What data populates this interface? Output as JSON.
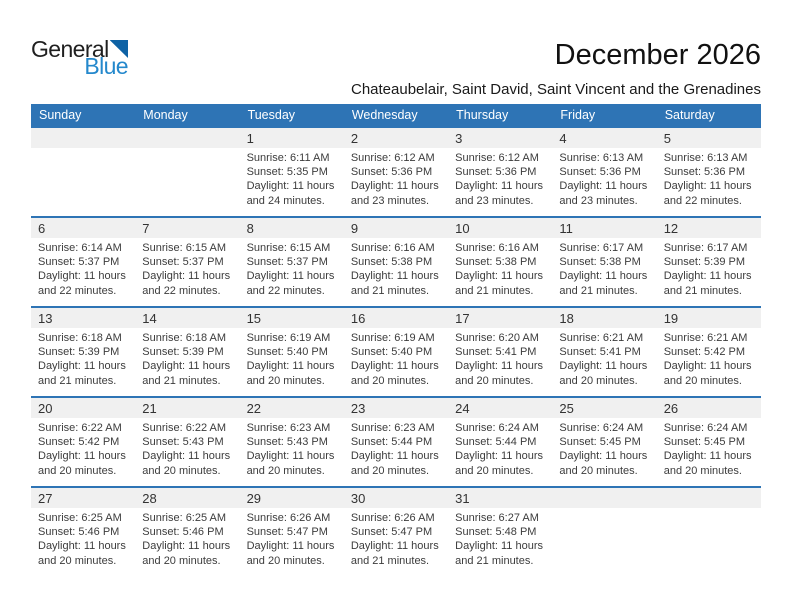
{
  "logo": {
    "word1": "General",
    "word2": "Blue"
  },
  "header": {
    "title": "December 2026",
    "subtitle": "Chateaubelair, Saint David, Saint Vincent and the Grenadines"
  },
  "colors": {
    "accent_blue": "#2e74b5",
    "band_gray": "#f0f0f0",
    "logo_blue": "#2488cc",
    "logo_triangle_blue": "#0e62a5"
  },
  "calendar": {
    "day_headers": [
      "Sunday",
      "Monday",
      "Tuesday",
      "Wednesday",
      "Thursday",
      "Friday",
      "Saturday"
    ],
    "weeks": [
      {
        "days": [
          null,
          null,
          {
            "date": "1",
            "sunrise": "Sunrise: 6:11 AM",
            "sunset": "Sunset: 5:35 PM",
            "daylight": "Daylight: 11 hours and 24 minutes."
          },
          {
            "date": "2",
            "sunrise": "Sunrise: 6:12 AM",
            "sunset": "Sunset: 5:36 PM",
            "daylight": "Daylight: 11 hours and 23 minutes."
          },
          {
            "date": "3",
            "sunrise": "Sunrise: 6:12 AM",
            "sunset": "Sunset: 5:36 PM",
            "daylight": "Daylight: 11 hours and 23 minutes."
          },
          {
            "date": "4",
            "sunrise": "Sunrise: 6:13 AM",
            "sunset": "Sunset: 5:36 PM",
            "daylight": "Daylight: 11 hours and 23 minutes."
          },
          {
            "date": "5",
            "sunrise": "Sunrise: 6:13 AM",
            "sunset": "Sunset: 5:36 PM",
            "daylight": "Daylight: 11 hours and 22 minutes."
          }
        ]
      },
      {
        "days": [
          {
            "date": "6",
            "sunrise": "Sunrise: 6:14 AM",
            "sunset": "Sunset: 5:37 PM",
            "daylight": "Daylight: 11 hours and 22 minutes."
          },
          {
            "date": "7",
            "sunrise": "Sunrise: 6:15 AM",
            "sunset": "Sunset: 5:37 PM",
            "daylight": "Daylight: 11 hours and 22 minutes."
          },
          {
            "date": "8",
            "sunrise": "Sunrise: 6:15 AM",
            "sunset": "Sunset: 5:37 PM",
            "daylight": "Daylight: 11 hours and 22 minutes."
          },
          {
            "date": "9",
            "sunrise": "Sunrise: 6:16 AM",
            "sunset": "Sunset: 5:38 PM",
            "daylight": "Daylight: 11 hours and 21 minutes."
          },
          {
            "date": "10",
            "sunrise": "Sunrise: 6:16 AM",
            "sunset": "Sunset: 5:38 PM",
            "daylight": "Daylight: 11 hours and 21 minutes."
          },
          {
            "date": "11",
            "sunrise": "Sunrise: 6:17 AM",
            "sunset": "Sunset: 5:38 PM",
            "daylight": "Daylight: 11 hours and 21 minutes."
          },
          {
            "date": "12",
            "sunrise": "Sunrise: 6:17 AM",
            "sunset": "Sunset: 5:39 PM",
            "daylight": "Daylight: 11 hours and 21 minutes."
          }
        ]
      },
      {
        "days": [
          {
            "date": "13",
            "sunrise": "Sunrise: 6:18 AM",
            "sunset": "Sunset: 5:39 PM",
            "daylight": "Daylight: 11 hours and 21 minutes."
          },
          {
            "date": "14",
            "sunrise": "Sunrise: 6:18 AM",
            "sunset": "Sunset: 5:39 PM",
            "daylight": "Daylight: 11 hours and 21 minutes."
          },
          {
            "date": "15",
            "sunrise": "Sunrise: 6:19 AM",
            "sunset": "Sunset: 5:40 PM",
            "daylight": "Daylight: 11 hours and 20 minutes."
          },
          {
            "date": "16",
            "sunrise": "Sunrise: 6:19 AM",
            "sunset": "Sunset: 5:40 PM",
            "daylight": "Daylight: 11 hours and 20 minutes."
          },
          {
            "date": "17",
            "sunrise": "Sunrise: 6:20 AM",
            "sunset": "Sunset: 5:41 PM",
            "daylight": "Daylight: 11 hours and 20 minutes."
          },
          {
            "date": "18",
            "sunrise": "Sunrise: 6:21 AM",
            "sunset": "Sunset: 5:41 PM",
            "daylight": "Daylight: 11 hours and 20 minutes."
          },
          {
            "date": "19",
            "sunrise": "Sunrise: 6:21 AM",
            "sunset": "Sunset: 5:42 PM",
            "daylight": "Daylight: 11 hours and 20 minutes."
          }
        ]
      },
      {
        "days": [
          {
            "date": "20",
            "sunrise": "Sunrise: 6:22 AM",
            "sunset": "Sunset: 5:42 PM",
            "daylight": "Daylight: 11 hours and 20 minutes."
          },
          {
            "date": "21",
            "sunrise": "Sunrise: 6:22 AM",
            "sunset": "Sunset: 5:43 PM",
            "daylight": "Daylight: 11 hours and 20 minutes."
          },
          {
            "date": "22",
            "sunrise": "Sunrise: 6:23 AM",
            "sunset": "Sunset: 5:43 PM",
            "daylight": "Daylight: 11 hours and 20 minutes."
          },
          {
            "date": "23",
            "sunrise": "Sunrise: 6:23 AM",
            "sunset": "Sunset: 5:44 PM",
            "daylight": "Daylight: 11 hours and 20 minutes."
          },
          {
            "date": "24",
            "sunrise": "Sunrise: 6:24 AM",
            "sunset": "Sunset: 5:44 PM",
            "daylight": "Daylight: 11 hours and 20 minutes."
          },
          {
            "date": "25",
            "sunrise": "Sunrise: 6:24 AM",
            "sunset": "Sunset: 5:45 PM",
            "daylight": "Daylight: 11 hours and 20 minutes."
          },
          {
            "date": "26",
            "sunrise": "Sunrise: 6:24 AM",
            "sunset": "Sunset: 5:45 PM",
            "daylight": "Daylight: 11 hours and 20 minutes."
          }
        ]
      },
      {
        "days": [
          {
            "date": "27",
            "sunrise": "Sunrise: 6:25 AM",
            "sunset": "Sunset: 5:46 PM",
            "daylight": "Daylight: 11 hours and 20 minutes."
          },
          {
            "date": "28",
            "sunrise": "Sunrise: 6:25 AM",
            "sunset": "Sunset: 5:46 PM",
            "daylight": "Daylight: 11 hours and 20 minutes."
          },
          {
            "date": "29",
            "sunrise": "Sunrise: 6:26 AM",
            "sunset": "Sunset: 5:47 PM",
            "daylight": "Daylight: 11 hours and 20 minutes."
          },
          {
            "date": "30",
            "sunrise": "Sunrise: 6:26 AM",
            "sunset": "Sunset: 5:47 PM",
            "daylight": "Daylight: 11 hours and 21 minutes."
          },
          {
            "date": "31",
            "sunrise": "Sunrise: 6:27 AM",
            "sunset": "Sunset: 5:48 PM",
            "daylight": "Daylight: 11 hours and 21 minutes."
          },
          null,
          null
        ]
      }
    ]
  }
}
